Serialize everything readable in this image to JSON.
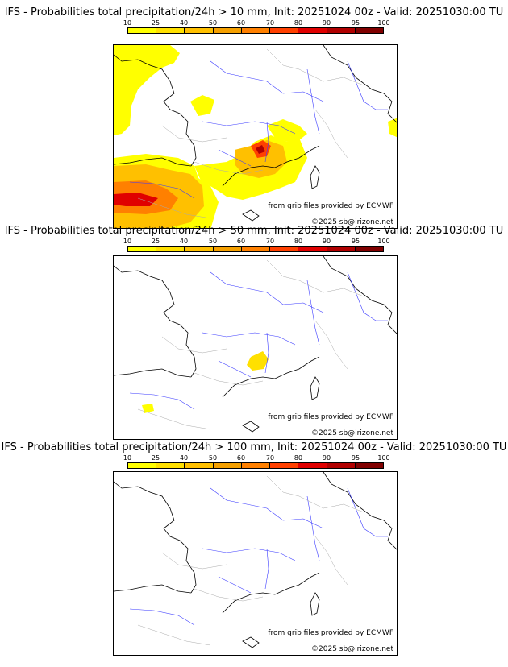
{
  "scale": {
    "ticks": [
      "10",
      "25",
      "40",
      "50",
      "60",
      "70",
      "80",
      "90",
      "95",
      "100"
    ],
    "colors": [
      "#ffff00",
      "#ffe000",
      "#ffc000",
      "#f5a000",
      "#ff8000",
      "#ff4000",
      "#e00000",
      "#b00000",
      "#800000"
    ]
  },
  "panels": [
    {
      "title": "IFS - Probabilities total precipitation/24h > 10 mm, Init: 20251024 00z - Valid: 20251030:00 TU",
      "credit": "from grib files provided by ECMWF",
      "copyright": "©2025 sb@irizone.net"
    },
    {
      "title": "IFS - Probabilities total precipitation/24h > 50 mm, Init: 20251024 00z - Valid: 20251030:00 TU",
      "credit": "from grib files provided by ECMWF",
      "copyright": "©2025 sb@irizone.net"
    },
    {
      "title": "IFS - Probabilities total precipitation/24h > 100 mm, Init: 20251024 00z - Valid: 20251030:00 TU",
      "credit": "from grib files provided by ECMWF",
      "copyright": "©2025 sb@irizone.net"
    }
  ]
}
